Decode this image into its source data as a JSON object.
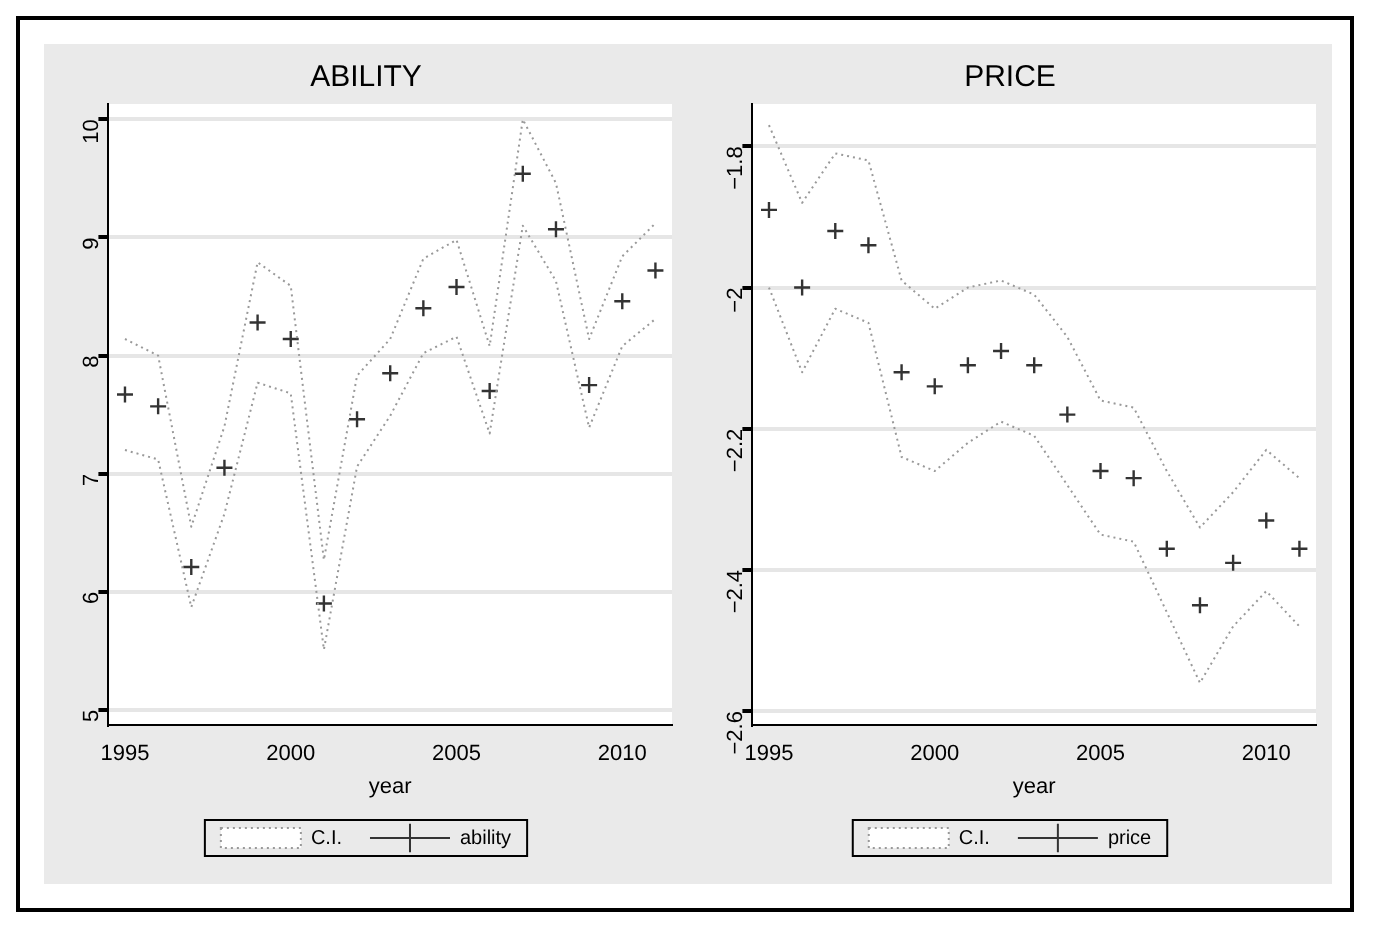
{
  "chart_data": [
    {
      "type": "line",
      "title": "ABILITY",
      "xlabel": "year",
      "x": [
        1995,
        1996,
        1997,
        1998,
        1999,
        2000,
        2001,
        2002,
        2003,
        2004,
        2005,
        2006,
        2007,
        2008,
        2009,
        2010,
        2011
      ],
      "xlim": [
        1994.5,
        2011.5
      ],
      "xticks": [
        1995,
        2000,
        2005,
        2010
      ],
      "ylim": [
        4.87,
        10.13
      ],
      "yticks": [
        5,
        6,
        7,
        8,
        9,
        10
      ],
      "grid": "y",
      "legend": "bottom",
      "series": [
        {
          "name": "C.I.",
          "type": "line",
          "line_style": "dotted",
          "marker": "none",
          "color": "#999999",
          "values": [
            8.14,
            8.0,
            6.55,
            7.4,
            8.79,
            8.59,
            6.27,
            7.83,
            8.14,
            8.82,
            8.98,
            8.08,
            10.0,
            9.46,
            8.14,
            8.84,
            9.12
          ]
        },
        {
          "type": "line",
          "line_style": "dotted",
          "marker": "none",
          "color": "#999999",
          "values": [
            7.2,
            7.12,
            5.87,
            6.66,
            7.77,
            7.68,
            5.51,
            7.06,
            7.49,
            8.02,
            8.16,
            7.34,
            9.1,
            8.63,
            7.39,
            8.08,
            8.31
          ]
        },
        {
          "name": "ability",
          "type": "scatter",
          "marker": "cross",
          "color": "#333333",
          "values": [
            7.67,
            7.57,
            6.21,
            7.05,
            8.28,
            8.14,
            5.9,
            7.46,
            7.85,
            8.4,
            8.58,
            7.7,
            9.54,
            9.07,
            7.75,
            8.46,
            8.72
          ]
        }
      ]
    },
    {
      "type": "line",
      "title": "PRICE",
      "xlabel": "year",
      "x": [
        1995,
        1996,
        1997,
        1998,
        1999,
        2000,
        2001,
        2002,
        2003,
        2004,
        2005,
        2006,
        2007,
        2008,
        2009,
        2010,
        2011
      ],
      "xlim": [
        1994.5,
        2011.5
      ],
      "xticks": [
        1995,
        2000,
        2005,
        2010
      ],
      "ylim": [
        -2.62,
        -1.74
      ],
      "yticks": [
        -2.6,
        -2.4,
        -2.2,
        -2,
        -1.8
      ],
      "grid": "y",
      "legend": "bottom",
      "series": [
        {
          "name": "C.I.",
          "type": "line",
          "line_style": "dotted",
          "marker": "none",
          "color": "#999999",
          "values": [
            -1.77,
            -1.88,
            -1.81,
            -1.82,
            -1.99,
            -2.03,
            -2.0,
            -1.99,
            -2.01,
            -2.07,
            -2.16,
            -2.17,
            -2.26,
            -2.34,
            -2.29,
            -2.23,
            -2.27
          ]
        },
        {
          "type": "line",
          "line_style": "dotted",
          "marker": "none",
          "color": "#999999",
          "values": [
            -2.0,
            -2.12,
            -2.03,
            -2.05,
            -2.24,
            -2.26,
            -2.22,
            -2.19,
            -2.21,
            -2.28,
            -2.35,
            -2.36,
            -2.46,
            -2.56,
            -2.48,
            -2.43,
            -2.48
          ]
        },
        {
          "name": "price",
          "type": "scatter",
          "marker": "cross",
          "color": "#333333",
          "values": [
            -1.89,
            -2.0,
            -1.92,
            -1.94,
            -2.12,
            -2.14,
            -2.11,
            -2.09,
            -2.11,
            -2.18,
            -2.26,
            -2.27,
            -2.37,
            -2.45,
            -2.39,
            -2.33,
            -2.37
          ]
        }
      ]
    }
  ]
}
